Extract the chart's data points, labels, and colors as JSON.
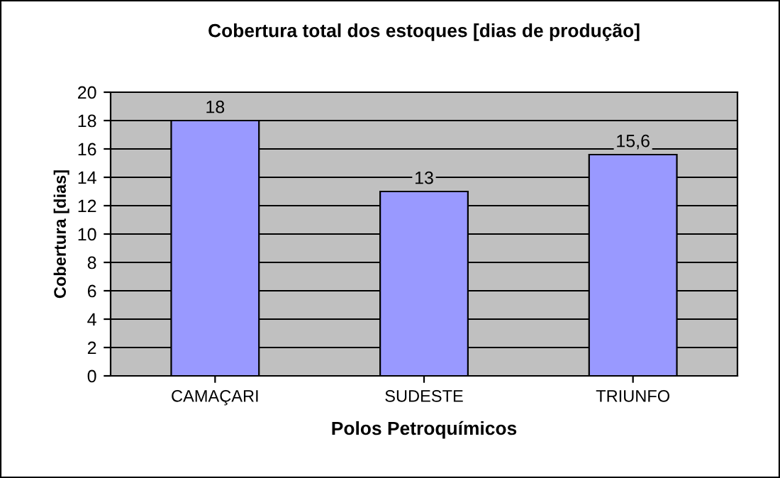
{
  "chart_data": {
    "type": "bar",
    "title": "Cobertura total dos estoques [dias de produção]",
    "xlabel": "Polos Petroquímicos",
    "ylabel": "Cobertura [dias]",
    "categories": [
      "CAMAÇARI",
      "SUDESTE",
      "TRIUNFO"
    ],
    "values": [
      18,
      13,
      15.6
    ],
    "value_labels": [
      "18",
      "13",
      "15,6"
    ],
    "color": "#9999ff",
    "ylim": [
      0,
      20
    ],
    "yticks": [
      0,
      2,
      4,
      6,
      8,
      10,
      12,
      14,
      16,
      18,
      20
    ],
    "grid": "y"
  }
}
